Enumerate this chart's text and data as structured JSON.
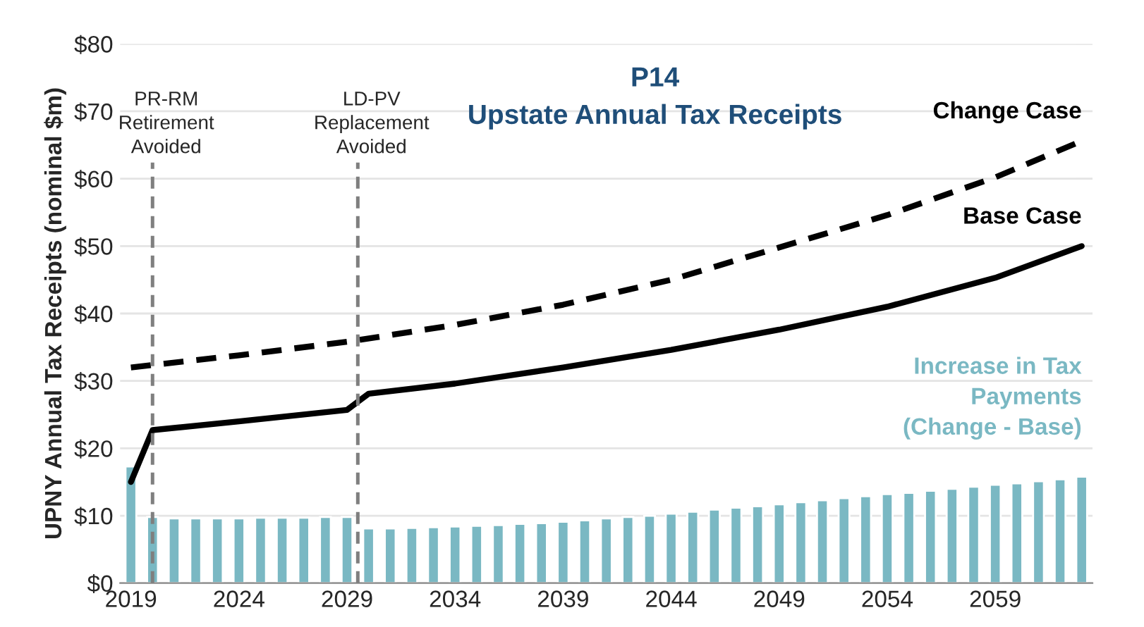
{
  "chart_data": {
    "type": "bar",
    "title": "P14\nUpstate Annual Tax Receipts",
    "ylabel": "UPNY Annual Tax Receipts (nominal $m)",
    "x": [
      2019,
      2020,
      2021,
      2022,
      2023,
      2024,
      2025,
      2026,
      2027,
      2028,
      2029,
      2030,
      2031,
      2032,
      2033,
      2034,
      2035,
      2036,
      2037,
      2038,
      2039,
      2040,
      2041,
      2042,
      2043,
      2044,
      2045,
      2046,
      2047,
      2048,
      2049,
      2050,
      2051,
      2052,
      2053,
      2054,
      2055,
      2056,
      2057,
      2058,
      2059,
      2060,
      2061,
      2062,
      2063
    ],
    "series": [
      {
        "name": "Increase in Tax\nPayments\n(Change - Base)",
        "color": "#7ab8c3",
        "values": [
          17.3,
          9.8,
          9.6,
          9.6,
          9.6,
          9.6,
          9.7,
          9.7,
          9.7,
          9.8,
          9.8,
          8.1,
          8.1,
          8.2,
          8.3,
          8.4,
          8.5,
          8.6,
          8.8,
          8.9,
          9.1,
          9.3,
          9.6,
          9.8,
          10.0,
          10.3,
          10.6,
          10.9,
          11.2,
          11.4,
          11.7,
          12.0,
          12.3,
          12.6,
          12.9,
          13.2,
          13.4,
          13.7,
          14.0,
          14.3,
          14.6,
          14.8,
          15.1,
          15.4,
          15.8
        ]
      },
      {
        "name": "Change Case",
        "type": "line",
        "line_style": "dashed",
        "color": "#000000",
        "x": [
          2019,
          2024,
          2029,
          2034,
          2039,
          2044,
          2049,
          2054,
          2059,
          2063
        ],
        "values": [
          32.0,
          33.8,
          35.8,
          38.3,
          41.3,
          45.0,
          49.8,
          54.6,
          60.2,
          65.6
        ]
      },
      {
        "name": "Base Case",
        "type": "line",
        "line_style": "solid",
        "color": "#000000",
        "x": [
          2019,
          2020,
          2024,
          2029,
          2030,
          2034,
          2039,
          2044,
          2049,
          2054,
          2059,
          2063
        ],
        "values": [
          15.0,
          22.7,
          24.0,
          25.7,
          28.1,
          29.6,
          32.0,
          34.6,
          37.6,
          41.0,
          45.3,
          50.0
        ]
      }
    ],
    "xlim": [
      2018.5,
      2063.5
    ],
    "xticks": [
      2019,
      2024,
      2029,
      2034,
      2039,
      2044,
      2049,
      2054,
      2059
    ],
    "ylim": [
      0,
      80
    ],
    "yticks": [
      {
        "value": 0,
        "label": "$0"
      },
      {
        "value": 10,
        "label": "$10"
      },
      {
        "value": 20,
        "label": "$20"
      },
      {
        "value": 30,
        "label": "$30"
      },
      {
        "value": 40,
        "label": "$40"
      },
      {
        "value": 50,
        "label": "$50"
      },
      {
        "value": 60,
        "label": "$60"
      },
      {
        "value": 70,
        "label": "$70"
      },
      {
        "value": 80,
        "label": "$80"
      }
    ],
    "grid": "y",
    "legend": false,
    "ref_lines": [
      {
        "axis": "x",
        "value": 2020,
        "label": "PR-RM\nRetirement\nAvoided",
        "color": "#7f7f7f",
        "line_style": "dashed"
      },
      {
        "axis": "x",
        "value": 2029.5,
        "label": "LD-PV\nReplacement\nAvoided",
        "color": "#7f7f7f",
        "line_style": "dashed"
      }
    ]
  }
}
